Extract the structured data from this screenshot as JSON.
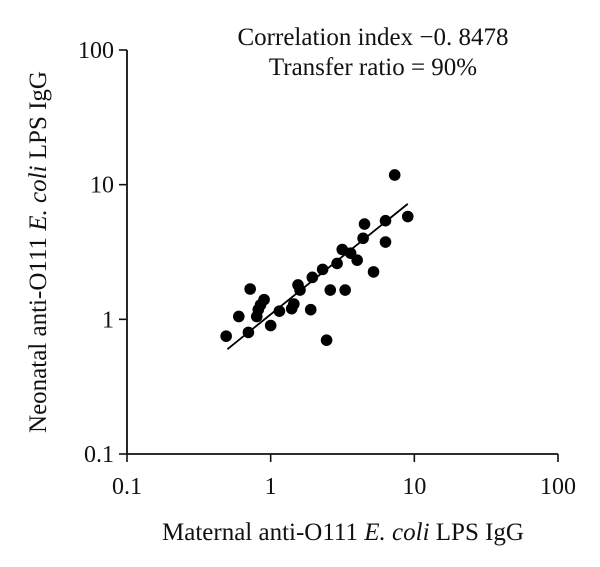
{
  "chart_data": {
    "type": "scatter",
    "x_scale": "log",
    "y_scale": "log",
    "xlim": [
      0.1,
      100
    ],
    "ylim": [
      0.1,
      100
    ],
    "grid": false,
    "x_ticks": [
      0.1,
      1,
      10,
      100
    ],
    "y_ticks": [
      0.1,
      1,
      10,
      100
    ],
    "x_tick_labels": [
      "0.1",
      "1",
      "10",
      "100"
    ],
    "y_tick_labels": [
      "0.1",
      "1",
      "10",
      "100"
    ],
    "xlabel": {
      "prefix": "Maternal anti-O111 ",
      "italic": "E. coli",
      "suffix": " LPS IgG"
    },
    "ylabel": {
      "prefix": "Neonatal anti-O111 ",
      "italic": "E. coli",
      "suffix": " LPS IgG"
    },
    "annotations": [
      "Correlation index −0. 8478",
      "Transfer ratio = 90%"
    ],
    "series": [
      {
        "points": [
          [
            0.49,
            0.75
          ],
          [
            0.6,
            1.05
          ],
          [
            0.7,
            0.8
          ],
          [
            0.72,
            1.68
          ],
          [
            0.8,
            1.05
          ],
          [
            0.82,
            1.18
          ],
          [
            0.85,
            1.28
          ],
          [
            0.9,
            1.4
          ],
          [
            1.0,
            0.9
          ],
          [
            1.15,
            1.15
          ],
          [
            1.4,
            1.2
          ],
          [
            1.45,
            1.3
          ],
          [
            1.55,
            1.8
          ],
          [
            1.6,
            1.65
          ],
          [
            1.9,
            1.18
          ],
          [
            1.95,
            2.05
          ],
          [
            2.3,
            2.35
          ],
          [
            2.45,
            0.7
          ],
          [
            2.6,
            1.65
          ],
          [
            2.9,
            2.6
          ],
          [
            3.15,
            3.3
          ],
          [
            3.3,
            1.65
          ],
          [
            3.6,
            3.1
          ],
          [
            4.0,
            2.75
          ],
          [
            4.4,
            4.0
          ],
          [
            4.5,
            5.1
          ],
          [
            5.2,
            2.25
          ],
          [
            6.3,
            3.75
          ],
          [
            6.3,
            5.4
          ],
          [
            7.3,
            11.8
          ],
          [
            9.0,
            5.8
          ]
        ],
        "fit_line": [
          [
            0.5,
            0.6
          ],
          [
            9.0,
            7.2
          ]
        ]
      }
    ]
  }
}
